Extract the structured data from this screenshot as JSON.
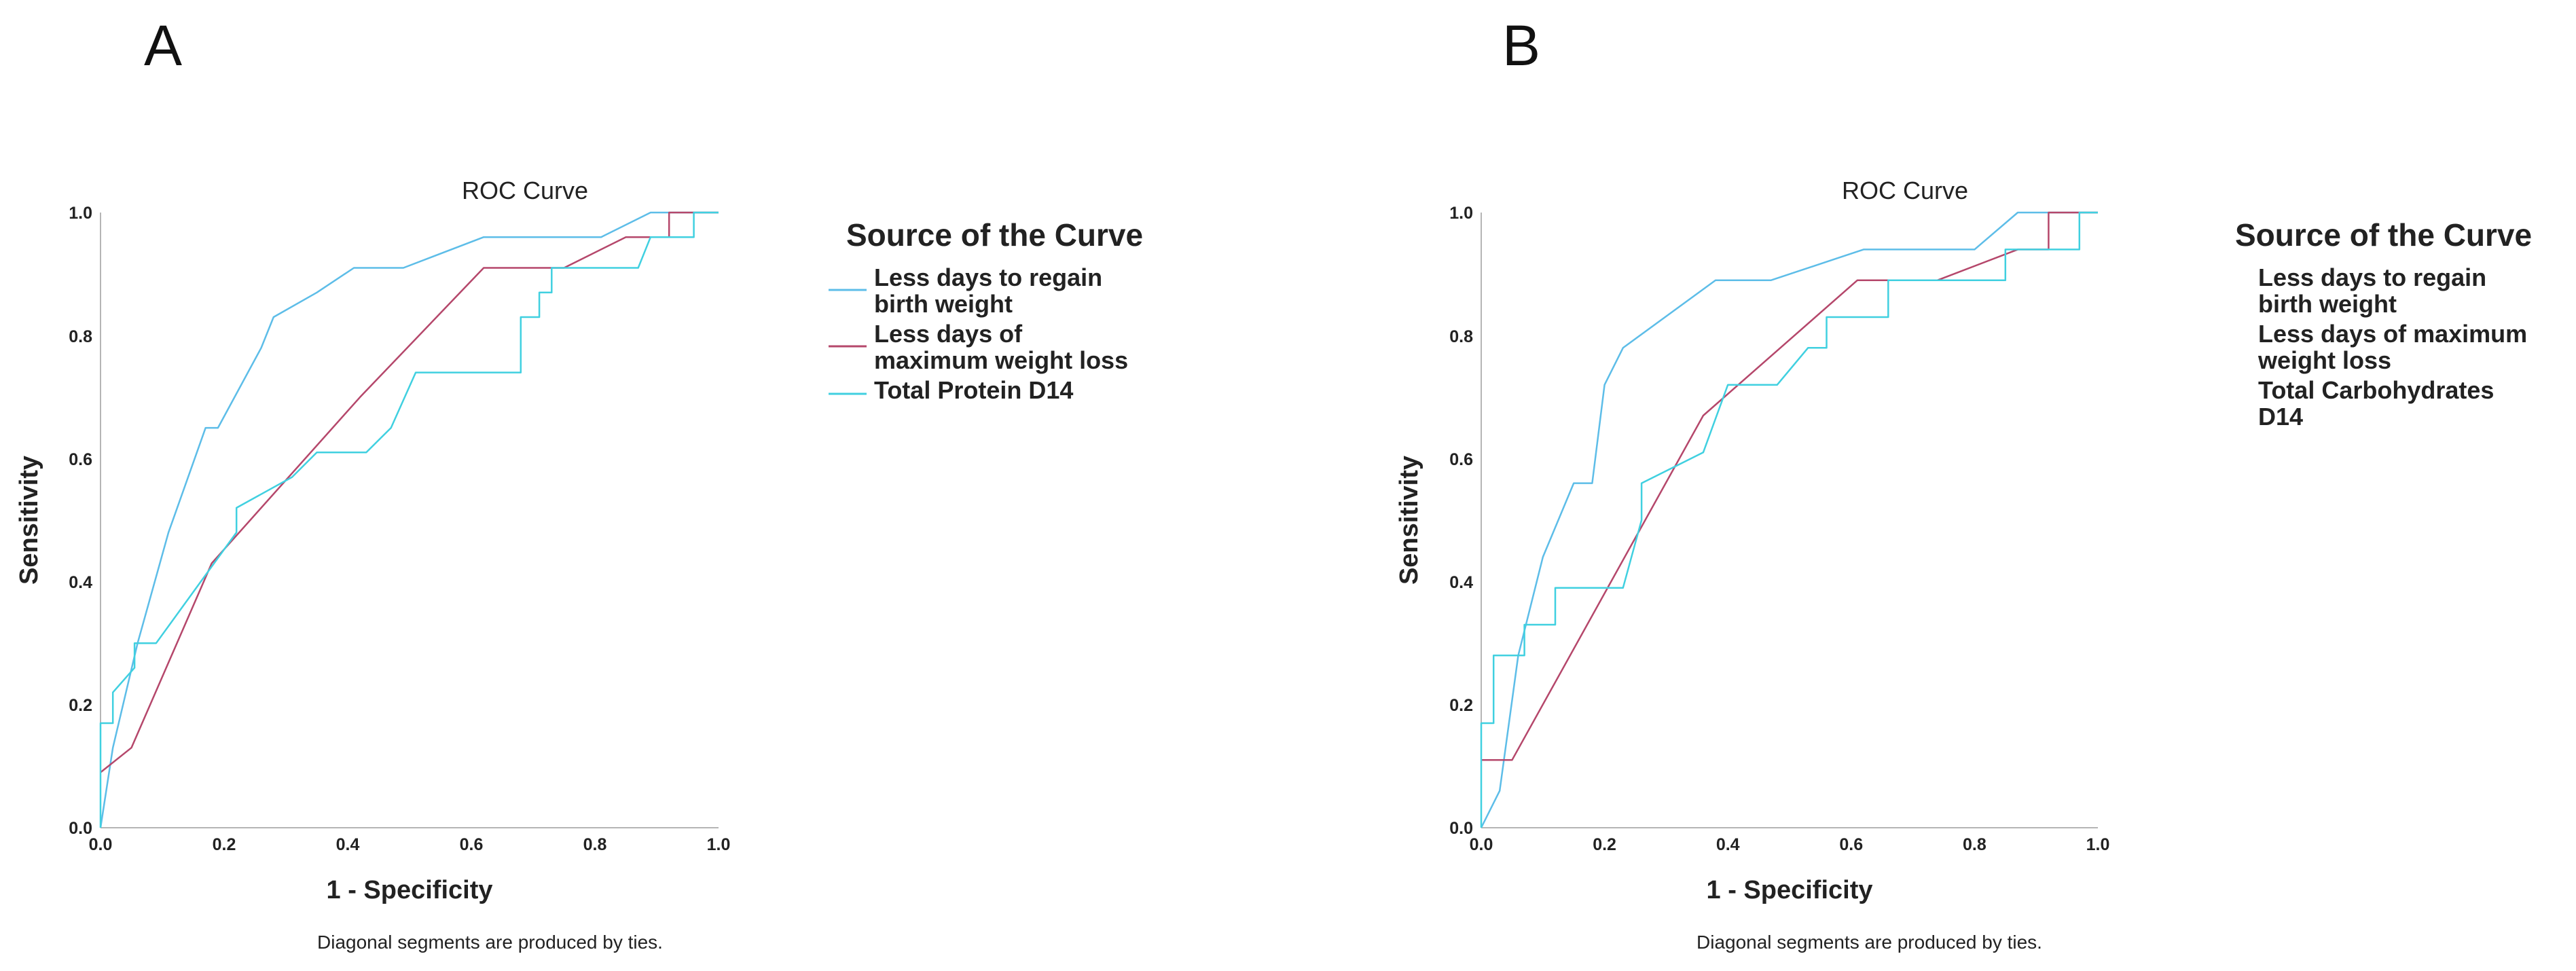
{
  "panels": [
    {
      "letter": "A",
      "chart_data": {
        "type": "line",
        "title": "ROC Curve",
        "xlabel": "1 - Specificity",
        "ylabel": "Sensitivity",
        "xlim": [
          0,
          1
        ],
        "ylim": [
          0,
          1
        ],
        "xticks": [
          "0.0",
          "0.2",
          "0.4",
          "0.6",
          "0.8",
          "1.0"
        ],
        "yticks": [
          "0.0",
          "0.2",
          "0.4",
          "0.6",
          "0.8",
          "1.0"
        ],
        "note": "Diagonal segments are produced by ties.",
        "legend_title": "Source of the Curve",
        "legend_position": "right",
        "series": [
          {
            "name": "Less days to regain birth weight",
            "legend_lines": [
              "Less days to regain",
              "birth weight"
            ],
            "color": "#5dbde8",
            "x": [
              0,
              0.02,
              0.06,
              0.11,
              0.17,
              0.19,
              0.26,
              0.28,
              0.35,
              0.41,
              0.49,
              0.62,
              0.81,
              0.89,
              1.0
            ],
            "y": [
              0,
              0.13,
              0.3,
              0.48,
              0.65,
              0.65,
              0.78,
              0.83,
              0.87,
              0.91,
              0.91,
              0.96,
              0.96,
              1.0,
              1.0
            ]
          },
          {
            "name": "Less days of maximum weight loss",
            "legend_lines": [
              "Less days of",
              "maximum weight loss"
            ],
            "color": "#b5476b",
            "x": [
              0,
              0.05,
              0.18,
              0.42,
              0.62,
              0.75,
              0.85,
              0.92,
              0.92,
              1.0
            ],
            "y": [
              0.09,
              0.13,
              0.43,
              0.7,
              0.91,
              0.91,
              0.96,
              0.96,
              1.0,
              1.0
            ]
          },
          {
            "name": "Total Protein D14",
            "legend_lines": [
              "Total Protein D14"
            ],
            "color": "#40d0e0",
            "x": [
              0,
              0,
              0.02,
              0.02,
              0.055,
              0.055,
              0.09,
              0.22,
              0.22,
              0.31,
              0.35,
              0.43,
              0.47,
              0.51,
              0.68,
              0.68,
              0.71,
              0.71,
              0.73,
              0.73,
              0.87,
              0.89,
              0.89,
              0.96,
              0.96,
              1.0
            ],
            "y": [
              0,
              0.17,
              0.17,
              0.22,
              0.26,
              0.3,
              0.3,
              0.48,
              0.52,
              0.57,
              0.61,
              0.61,
              0.65,
              0.74,
              0.74,
              0.83,
              0.83,
              0.87,
              0.87,
              0.91,
              0.91,
              0.96,
              0.96,
              0.96,
              1.0,
              1.0
            ]
          }
        ]
      }
    },
    {
      "letter": "B",
      "chart_data": {
        "type": "line",
        "title": "ROC Curve",
        "xlabel": "1 - Specificity",
        "ylabel": "Sensitivity",
        "xlim": [
          0,
          1
        ],
        "ylim": [
          0,
          1
        ],
        "xticks": [
          "0.0",
          "0.2",
          "0.4",
          "0.6",
          "0.8",
          "1.0"
        ],
        "yticks": [
          "0.0",
          "0.2",
          "0.4",
          "0.6",
          "0.8",
          "1.0"
        ],
        "note": "Diagonal segments are produced by ties.",
        "legend_title": "Source of the Curve",
        "legend_position": "right",
        "series": [
          {
            "name": "Less days to regain birth weight",
            "legend_lines": [
              "Less days to regain",
              "birth weight"
            ],
            "color": "#5dbde8",
            "x": [
              0,
              0.03,
              0.06,
              0.1,
              0.15,
              0.18,
              0.2,
              0.23,
              0.38,
              0.47,
              0.62,
              0.8,
              0.87,
              1.0
            ],
            "y": [
              0,
              0.06,
              0.28,
              0.44,
              0.56,
              0.56,
              0.72,
              0.78,
              0.89,
              0.89,
              0.94,
              0.94,
              1.0,
              1.0
            ]
          },
          {
            "name": "Less days of maximum weight loss",
            "legend_lines": [
              "Less days of maximum",
              "weight loss"
            ],
            "color": "#b5476b",
            "x": [
              0,
              0.05,
              0.36,
              0.61,
              0.74,
              0.87,
              0.92,
              0.92,
              1.0
            ],
            "y": [
              0.11,
              0.11,
              0.67,
              0.89,
              0.89,
              0.94,
              0.94,
              1.0,
              1.0
            ]
          },
          {
            "name": "Total Carbohydrates D14",
            "legend_lines": [
              "Total Carbohydrates",
              "D14"
            ],
            "color": "#40d0e0",
            "x": [
              0,
              0,
              0.02,
              0.02,
              0.05,
              0.05,
              0.07,
              0.07,
              0.12,
              0.12,
              0.23,
              0.26,
              0.26,
              0.36,
              0.4,
              0.48,
              0.53,
              0.56,
              0.56,
              0.58,
              0.58,
              0.66,
              0.66,
              0.85,
              0.85,
              0.97,
              0.97,
              1.0
            ],
            "y": [
              0,
              0.17,
              0.17,
              0.28,
              0.28,
              0.28,
              0.28,
              0.33,
              0.33,
              0.39,
              0.39,
              0.5,
              0.56,
              0.61,
              0.72,
              0.72,
              0.78,
              0.78,
              0.83,
              0.83,
              0.83,
              0.83,
              0.89,
              0.89,
              0.94,
              0.94,
              1.0,
              1.0
            ]
          }
        ]
      }
    }
  ]
}
